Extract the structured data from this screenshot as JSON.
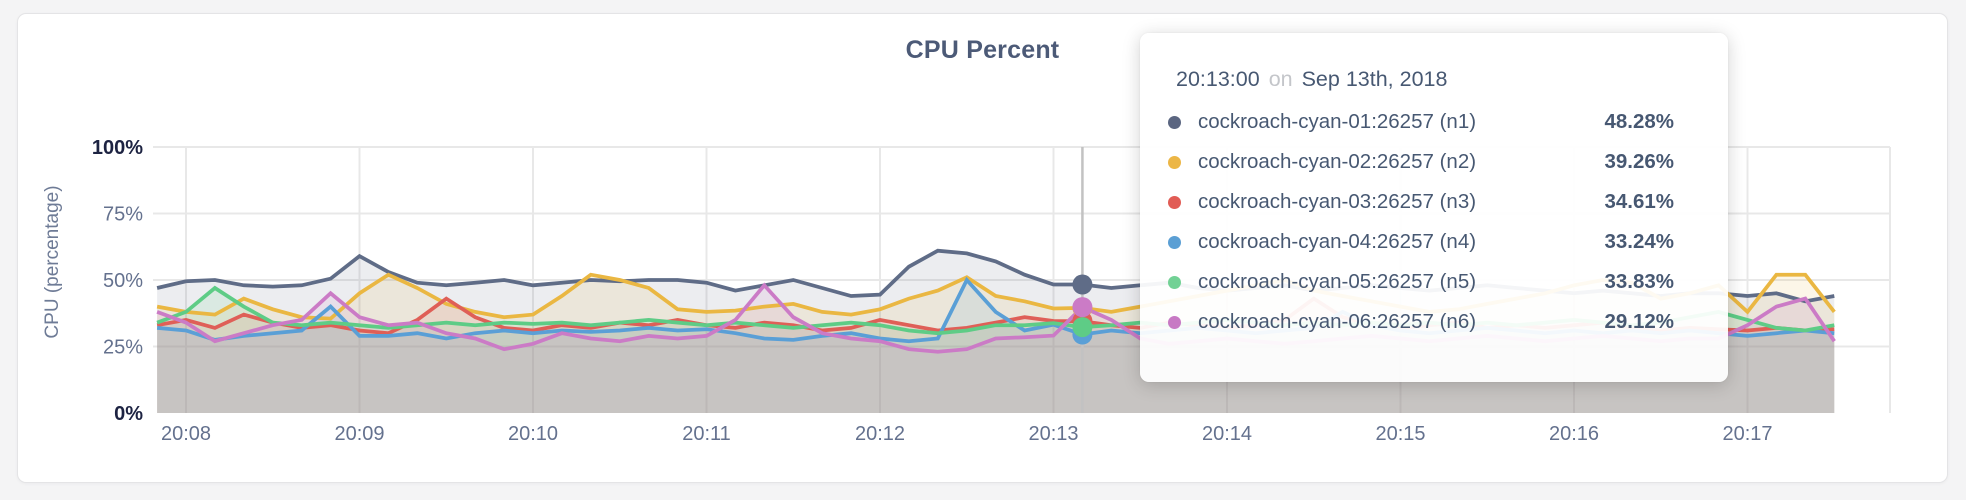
{
  "tooltip": {
    "time": "20:13:00",
    "on_word": "on",
    "date": "Sep 13th, 2018",
    "rows": [
      {
        "label": "cockroach-cyan-01:26257 (n1)",
        "value": "48.28%",
        "color": "#5b6681"
      },
      {
        "label": "cockroach-cyan-02:26257 (n2)",
        "value": "39.26%",
        "color": "#ecb646"
      },
      {
        "label": "cockroach-cyan-03:26257 (n3)",
        "value": "34.61%",
        "color": "#e15c55"
      },
      {
        "label": "cockroach-cyan-04:26257 (n4)",
        "value": "33.24%",
        "color": "#5b9fd4"
      },
      {
        "label": "cockroach-cyan-05:26257 (n5)",
        "value": "33.83%",
        "color": "#72d195"
      },
      {
        "label": "cockroach-cyan-06:26257 (n6)",
        "value": "29.12%",
        "color": "#c779c4"
      }
    ]
  },
  "chart_data": {
    "type": "line",
    "title": "CPU Percent",
    "ylabel": "CPU (percentage)",
    "ylim": [
      0,
      100
    ],
    "grid": true,
    "colors": {
      "gridline": "#e8e8e8",
      "hover_line": "#c2c2c2",
      "area_opacity": 0.12
    },
    "y_ticks": [
      {
        "label": "0%",
        "value": 0,
        "strong": true
      },
      {
        "label": "25%",
        "value": 25,
        "strong": false
      },
      {
        "label": "50%",
        "value": 50,
        "strong": false
      },
      {
        "label": "75%",
        "value": 75,
        "strong": false
      },
      {
        "label": "100%",
        "value": 100,
        "strong": true
      }
    ],
    "x_ticks": [
      "20:08",
      "20:09",
      "20:10",
      "20:11",
      "20:12",
      "20:13",
      "20:14",
      "20:15",
      "20:16",
      "20:17"
    ],
    "x_start": "20:07:50",
    "x_step_seconds": 10,
    "hover": {
      "x": "20:13:10",
      "tooltip_time": "20:13:00",
      "dot_values": [
        48.3,
        39.5,
        34.6,
        29.5,
        32.3,
        39.8
      ]
    },
    "series": [
      {
        "name": "cockroach-cyan-01:26257 (n1)",
        "color": "#5f6c87",
        "tooltip_value_percent": 48.28,
        "values": [
          47,
          49.5,
          50,
          48,
          47.5,
          48,
          50.5,
          59,
          53,
          49,
          48,
          49,
          50,
          48,
          49,
          50,
          49.5,
          50,
          50,
          49,
          46,
          48,
          50,
          47,
          44,
          44.5,
          55,
          61,
          60,
          57,
          52,
          48.3,
          48.3,
          47,
          48,
          49,
          47,
          46,
          47,
          48,
          46,
          47,
          48,
          47,
          46,
          47,
          48,
          47,
          46,
          45,
          46,
          45,
          44,
          45,
          45,
          44,
          45,
          42,
          44
        ]
      },
      {
        "name": "cockroach-cyan-02:26257 (n2)",
        "color": "#eab742",
        "tooltip_value_percent": 39.26,
        "values": [
          40,
          38,
          37,
          43,
          39,
          36,
          35.5,
          45,
          52,
          47,
          41,
          38,
          36,
          37,
          44,
          52,
          50,
          47,
          39,
          38,
          38.5,
          40,
          41,
          38,
          37,
          39,
          43,
          46,
          51,
          44,
          42,
          39.3,
          39.5,
          38,
          40,
          42,
          44,
          46,
          48,
          50,
          46,
          44,
          42,
          40,
          38,
          39,
          41,
          43,
          45,
          48,
          50,
          49,
          43,
          45,
          48,
          38,
          52,
          52,
          38
        ]
      },
      {
        "name": "cockroach-cyan-03:26257 (n3)",
        "color": "#df5f57",
        "tooltip_value_percent": 34.61,
        "values": [
          33,
          35,
          32,
          37,
          34,
          32,
          33,
          31,
          30,
          35,
          43,
          36,
          32,
          31,
          33,
          32,
          34,
          33,
          35,
          33,
          32,
          34,
          33,
          31,
          32,
          35,
          33,
          31,
          32,
          34,
          36,
          34.6,
          34.5,
          33,
          32,
          34,
          33,
          32,
          33,
          35,
          43,
          36,
          33,
          32,
          33,
          34,
          32,
          33,
          32,
          33,
          34,
          32,
          31,
          32,
          31.5,
          31,
          32,
          31,
          31.5
        ]
      },
      {
        "name": "cockroach-cyan-04:26257 (n4)",
        "color": "#5a9fd6",
        "tooltip_value_percent": 33.24,
        "values": [
          32,
          31,
          27.5,
          29,
          30,
          31,
          40,
          29,
          29,
          30,
          28,
          30,
          31,
          30,
          31,
          30.5,
          31,
          32,
          31,
          31.5,
          30,
          28,
          27.5,
          29,
          30,
          28,
          27,
          28,
          50,
          38,
          31,
          33.2,
          29.5,
          31,
          30,
          31,
          32,
          31,
          30,
          31,
          32,
          38,
          33,
          31,
          30,
          31,
          32,
          31,
          30,
          31,
          30,
          31,
          30,
          31,
          30,
          29,
          30,
          31,
          30
        ]
      },
      {
        "name": "cockroach-cyan-05:26257 (n5)",
        "color": "#5ecc86",
        "tooltip_value_percent": 33.83,
        "values": [
          34,
          38,
          47,
          40,
          34,
          33,
          34,
          33,
          32,
          33,
          34,
          33,
          34,
          33.5,
          34,
          33,
          34,
          35,
          34,
          33,
          34,
          33,
          32,
          33,
          34,
          33,
          31,
          30,
          31,
          33,
          33,
          33.8,
          32.3,
          33,
          34,
          33,
          34,
          35,
          34,
          33,
          34,
          33,
          34,
          33,
          34,
          33,
          34,
          33,
          34,
          35,
          34,
          33,
          34,
          36,
          38,
          35,
          32,
          31,
          33
        ]
      },
      {
        "name": "cockroach-cyan-06:26257 (n6)",
        "color": "#cb7bc6",
        "tooltip_value_percent": 29.12,
        "values": [
          38,
          34,
          27,
          30,
          33,
          35,
          45,
          36,
          33,
          34,
          30,
          28,
          24,
          26,
          30,
          28,
          27,
          29,
          28,
          29,
          35,
          48,
          36,
          30,
          28,
          27,
          24,
          23,
          24,
          28,
          28.5,
          29.1,
          39.8,
          35,
          28,
          26,
          27,
          28,
          27,
          26,
          27,
          28,
          29,
          28,
          27,
          28,
          29,
          28,
          27,
          28,
          29,
          28,
          27,
          28,
          28,
          33,
          40,
          43,
          27
        ]
      }
    ]
  }
}
